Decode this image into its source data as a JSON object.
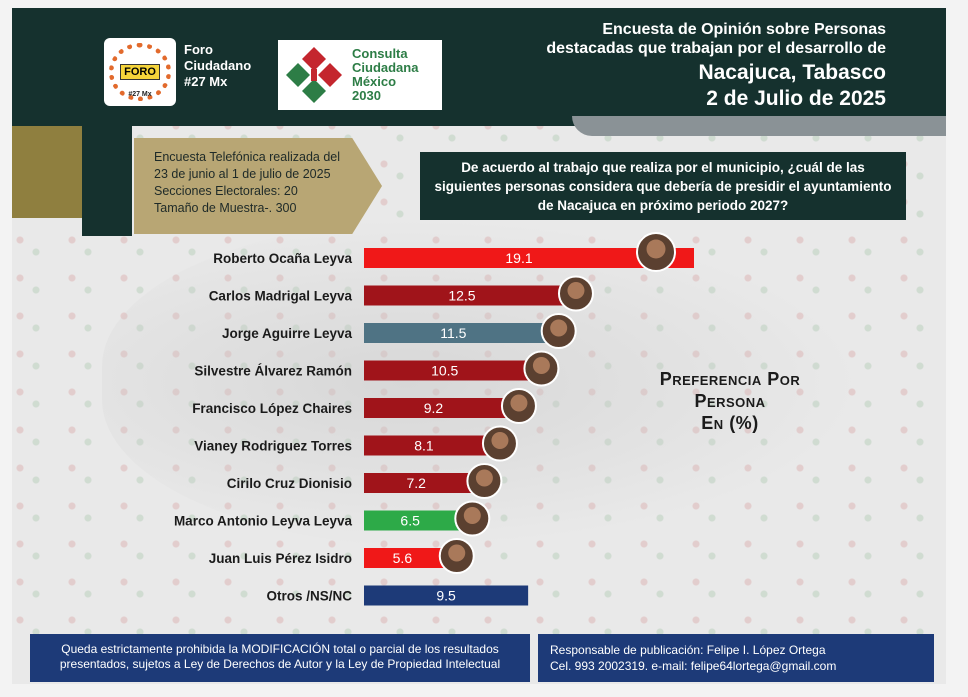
{
  "header": {
    "foro_logo_word": "FORO",
    "foro_logo_sub": "#27 Mx",
    "foro_title": "Foro Ciudadano #27 Mx",
    "consulta_logo_text": [
      "Consulta",
      "Ciudadana",
      "México",
      "2030"
    ],
    "title_line1": "Encuesta de Opinión sobre Personas",
    "title_line2": "destacadas que trabajan por el desarrollo de",
    "title_place": "Nacajuca, Tabasco",
    "title_date": "2 de Julio de 2025"
  },
  "survey_info": {
    "line1": "Encuesta Telefónica realizada del",
    "line2": "23 de junio al 1 de julio de 2025",
    "line3": "Secciones Electorales: 20",
    "line4": "Tamaño de Muestra-. 300"
  },
  "question": "De acuerdo al trabajo que realiza por el municipio, ¿cuál de las siguientes personas considera que debería de presidir el ayuntamiento de Nacajuca en próximo periodo 2027?",
  "chart_data": {
    "type": "bar",
    "orientation": "horizontal",
    "title": "Preferencia Por Persona En (%)",
    "categories": [
      "Roberto Ocaña Leyva",
      "Carlos Madrigal Leyva",
      "Jorge Aguirre Leyva",
      "Silvestre Álvarez Ramón",
      "Francisco López Chaires",
      "Vianey Rodriguez Torres",
      "Cirilo Cruz Dionisio",
      "Marco Antonio Leyva Leyva",
      "Juan Luis Pérez Isidro",
      "Otros /NS/NC"
    ],
    "values": [
      19.1,
      12.5,
      11.5,
      10.5,
      9.2,
      8.1,
      7.2,
      6.5,
      5.6,
      9.5
    ],
    "value_labels": [
      "19.1",
      "12.5",
      "11.5",
      "10.5",
      "9.2",
      "8.1",
      "7.2",
      "6.5",
      "5.6",
      "9.5"
    ],
    "bar_colors": [
      "#f01818",
      "#a0141a",
      "#4f7384",
      "#a0141a",
      "#a0141a",
      "#a0141a",
      "#a0141a",
      "#2daa48",
      "#f01818",
      "#1d3a78"
    ],
    "has_photo": [
      true,
      true,
      true,
      true,
      true,
      true,
      true,
      true,
      true,
      false
    ],
    "xlim": [
      0,
      20
    ],
    "grid": false,
    "legend": "none"
  },
  "chart_title": {
    "line1": "Preferencia Por",
    "line2": "Persona",
    "line3": "En (%)"
  },
  "footer": {
    "disclaimer_line1": "Queda estrictamente prohibida la MODIFICACIÓN  total o parcial de los resultados",
    "disclaimer_line2": "presentados, sujetos a Ley de Derechos de Autor y la Ley de Propiedad Intelectual",
    "responsible": "Responsable de publicación: Felipe I. López Ortega",
    "contact": "Cel. 993 2002319. e-mail: felipe64lortega@gmail.com"
  },
  "colors": {
    "header_bg": "#15312e",
    "survey_box": "#b8a674",
    "footer_bg": "#1d3a78"
  }
}
